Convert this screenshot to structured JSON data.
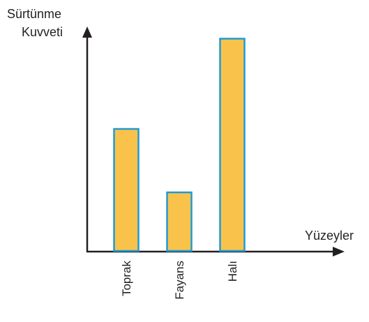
{
  "chart_data": {
    "type": "bar",
    "title": "",
    "ylabel_lines": [
      "Sürtünme",
      "Kuvveti"
    ],
    "xlabel": "Yüzeyler",
    "categories": [
      "Toprak",
      "Fayans",
      "Halı"
    ],
    "values": [
      5,
      2.4,
      8.7
    ],
    "ylim": [
      0,
      10
    ],
    "y_ticks_shown": false,
    "grid": false,
    "colors": {
      "bar_fill": "#f9c34b",
      "bar_stroke": "#1f9ad6",
      "axis": "#231f20"
    }
  }
}
